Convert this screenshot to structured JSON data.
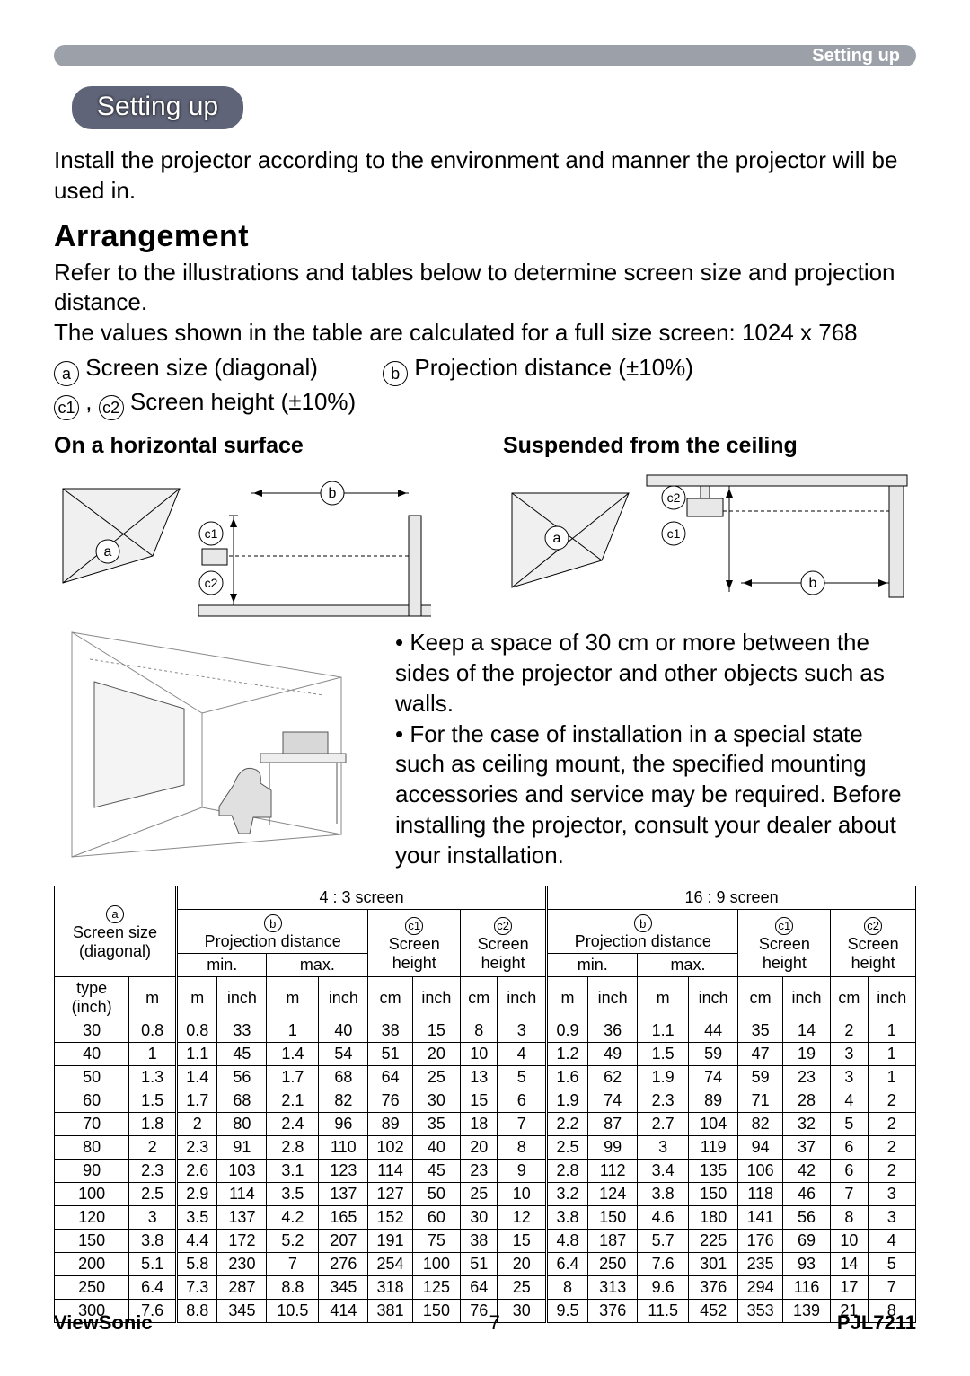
{
  "header": {
    "chip": "Setting up"
  },
  "pill": "Setting up",
  "intro": "Install the projector according to the environment and manner the projector will be used in.",
  "arrangement": {
    "title": "Arrangement",
    "p1": "Refer to the illustrations and tables below to determine screen size and projection distance.",
    "p2": "The values shown in the table are calculated for a full size screen: 1024 x 768",
    "def_a": " Screen size (diagonal)",
    "def_b": " Projection distance (±10%)",
    "def_c": " Screen height (±10%)"
  },
  "diag": {
    "h_left": "On a horizontal surface",
    "h_right": "Suspended from the ceiling"
  },
  "notes": {
    "n1": "• Keep a space of 30 cm or more between the sides of the projector and other objects such as walls.",
    "n2": "• For the case of installation in a special state such as ceiling mount, the specified mounting accessories and service may be required. Before installing the projector, consult your dealer about your installation."
  },
  "table": {
    "col_groups": {
      "ratio43": "4 : 3 screen",
      "ratio169": "16 : 9 screen"
    },
    "headers": {
      "a_top": "Screen size",
      "a_sub": "(diagonal)",
      "b": "Projection distance",
      "c1": "Screen",
      "c1b": "height",
      "c2": "Screen",
      "c2b": "height",
      "min": "min.",
      "max": "max.",
      "type": "type",
      "type2": "(inch)",
      "m": "m",
      "inch": "inch",
      "cm": "cm"
    },
    "rows": [
      [
        30,
        0.8,
        0.8,
        33,
        1.0,
        40,
        38,
        15,
        8,
        3,
        0.9,
        36,
        1.1,
        44,
        35,
        14,
        2,
        1
      ],
      [
        40,
        1.0,
        1.1,
        45,
        1.4,
        54,
        51,
        20,
        10,
        4,
        1.2,
        49,
        1.5,
        59,
        47,
        19,
        3,
        1
      ],
      [
        50,
        1.3,
        1.4,
        56,
        1.7,
        68,
        64,
        25,
        13,
        5,
        1.6,
        62,
        1.9,
        74,
        59,
        23,
        3,
        1
      ],
      [
        60,
        1.5,
        1.7,
        68,
        2.1,
        82,
        76,
        30,
        15,
        6,
        1.9,
        74,
        2.3,
        89,
        71,
        28,
        4,
        2
      ],
      [
        70,
        1.8,
        2.0,
        80,
        2.4,
        96,
        89,
        35,
        18,
        7,
        2.2,
        87,
        2.7,
        104,
        82,
        32,
        5,
        2
      ],
      [
        80,
        2.0,
        2.3,
        91,
        2.8,
        110,
        102,
        40,
        20,
        8,
        2.5,
        99,
        3.0,
        119,
        94,
        37,
        6,
        2
      ],
      [
        90,
        2.3,
        2.6,
        103,
        3.1,
        123,
        114,
        45,
        23,
        9,
        2.8,
        112,
        3.4,
        135,
        106,
        42,
        6,
        2
      ],
      [
        100,
        2.5,
        2.9,
        114,
        3.5,
        137,
        127,
        50,
        25,
        10,
        3.2,
        124,
        3.8,
        150,
        118,
        46,
        7,
        3
      ],
      [
        120,
        3.0,
        3.5,
        137,
        4.2,
        165,
        152,
        60,
        30,
        12,
        3.8,
        150,
        4.6,
        180,
        141,
        56,
        8,
        3
      ],
      [
        150,
        3.8,
        4.4,
        172,
        5.2,
        207,
        191,
        75,
        38,
        15,
        4.8,
        187,
        5.7,
        225,
        176,
        69,
        10,
        4
      ],
      [
        200,
        5.1,
        5.8,
        230,
        7.0,
        276,
        254,
        100,
        51,
        20,
        6.4,
        250,
        7.6,
        301,
        235,
        93,
        14,
        5
      ],
      [
        250,
        6.4,
        7.3,
        287,
        8.8,
        345,
        318,
        125,
        64,
        25,
        8.0,
        313,
        9.6,
        376,
        294,
        116,
        17,
        7
      ],
      [
        300,
        7.6,
        8.8,
        345,
        10.5,
        414,
        381,
        150,
        76,
        30,
        9.5,
        376,
        11.5,
        452,
        353,
        139,
        21,
        8
      ]
    ]
  },
  "footer": {
    "left": "ViewSonic",
    "page": "7",
    "right": "PJL7211"
  }
}
